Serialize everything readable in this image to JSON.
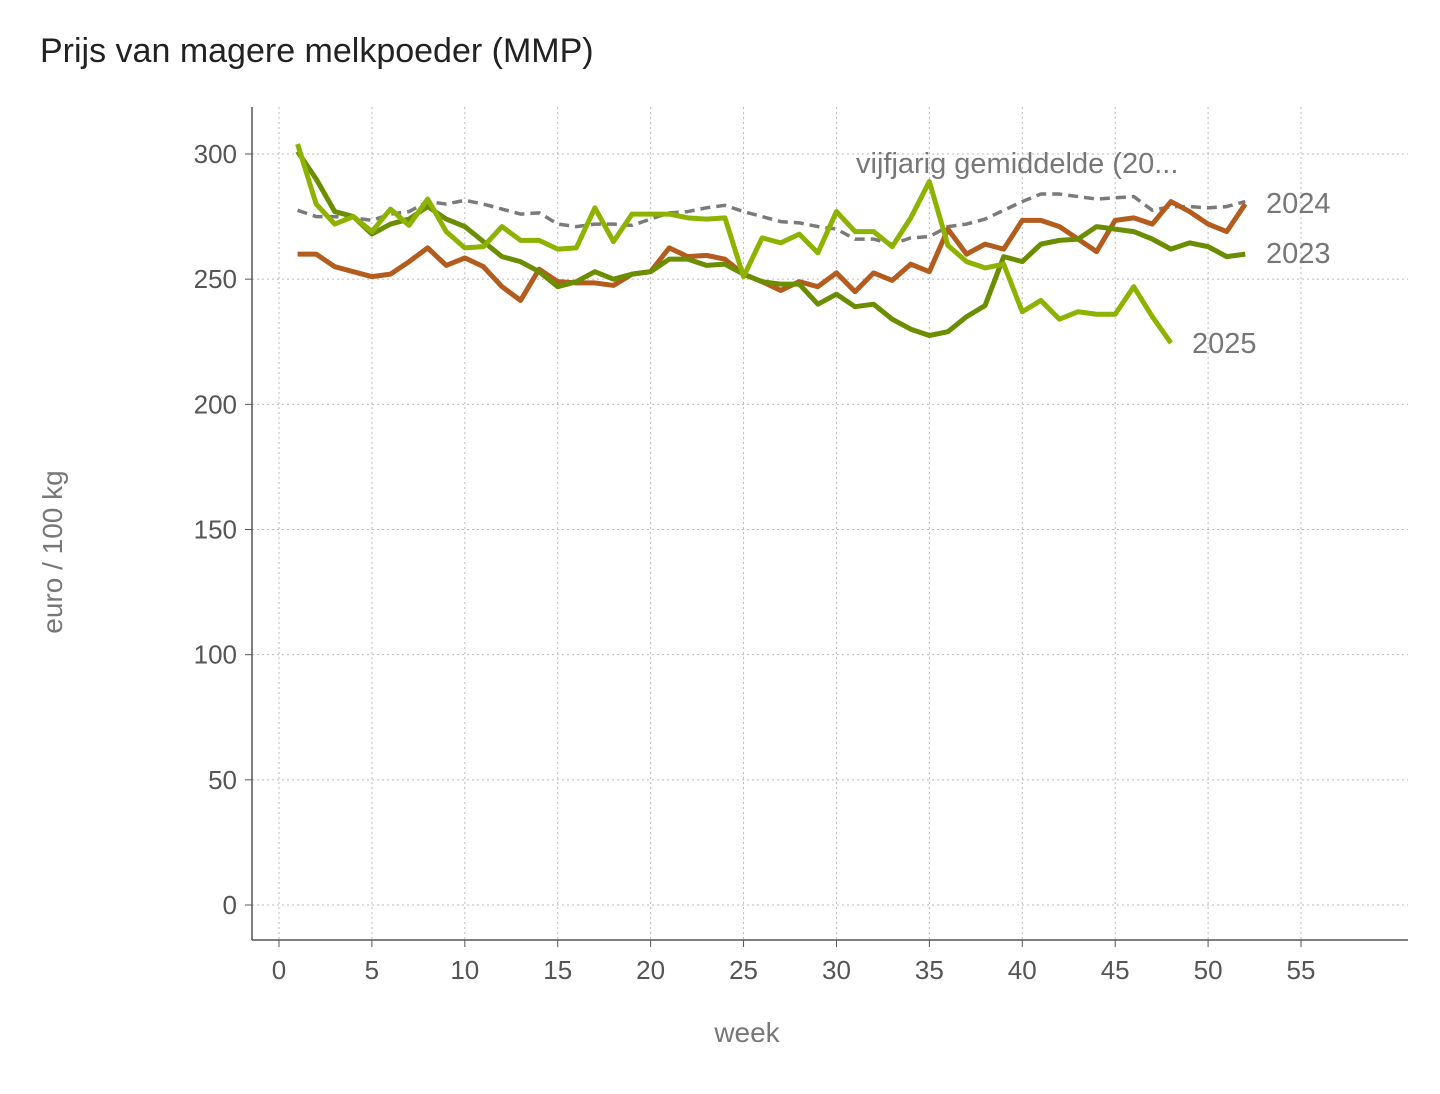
{
  "title": "Prijs van magere melkpoeder (MMP)",
  "chart_data": {
    "type": "line",
    "title": "Prijs van magere melkpoeder (MMP)",
    "xlabel": "week",
    "ylabel": "euro / 100 kg",
    "xlim": [
      -1.5,
      60.5
    ],
    "ylim": [
      -13,
      319
    ],
    "xticks": [
      0,
      5,
      10,
      15,
      20,
      25,
      30,
      35,
      40,
      45,
      50,
      55
    ],
    "yticks": [
      0,
      50,
      100,
      150,
      200,
      250,
      300
    ],
    "grid": true,
    "legend": "direct labels at line ends",
    "series": [
      {
        "name": "vijfjarig gemiddelde (20...",
        "color": "#7a7a7a",
        "dash": true,
        "values": [
          277.5,
          275,
          275,
          274.5,
          273.5,
          276,
          277,
          281,
          280,
          281.5,
          280,
          278,
          276,
          276.5,
          272,
          271,
          272,
          272,
          271.5,
          274,
          276.5,
          277,
          278.5,
          279.5,
          277,
          275,
          273,
          272.5,
          271,
          270,
          266,
          266,
          264,
          266.5,
          267,
          271,
          272,
          274,
          277.5,
          281,
          284,
          284,
          283,
          282,
          282.5,
          283,
          277.5,
          279,
          279,
          278.5,
          279,
          281
        ]
      },
      {
        "name": "2024",
        "color": "#b35c1e",
        "values": [
          260,
          260,
          255,
          253,
          251,
          252,
          257,
          262.5,
          255.5,
          258.5,
          255,
          247,
          241.5,
          254,
          249,
          248.5,
          248.5,
          247.5,
          252,
          253,
          262.5,
          259,
          259.5,
          258,
          252,
          249,
          245.5,
          249,
          247,
          252.5,
          245,
          252.5,
          249.5,
          256,
          253,
          270,
          260,
          264,
          262,
          273.5,
          273.5,
          271,
          266,
          261,
          273.5,
          274.5,
          272,
          281,
          277,
          272,
          269,
          280
        ]
      },
      {
        "name": "2023",
        "color": "#6b8e00",
        "values": [
          301,
          290,
          277,
          275,
          268,
          272,
          274,
          279,
          274,
          271,
          265,
          259,
          257,
          253,
          247,
          249,
          253,
          250,
          252,
          253,
          258,
          258,
          255.5,
          256,
          252,
          249,
          248,
          248,
          240,
          244,
          239,
          240,
          234,
          230,
          227.5,
          229,
          235,
          239.5,
          259,
          257,
          264,
          265.5,
          266,
          271,
          270,
          269,
          266,
          262,
          264.5,
          263,
          259,
          260
        ]
      },
      {
        "name": "2025",
        "color": "#8db300",
        "values": [
          304,
          280,
          272,
          275,
          269,
          278,
          271.5,
          282,
          269,
          262.5,
          263,
          271,
          265.5,
          265.5,
          262,
          262.5,
          278.5,
          265,
          276,
          276,
          276,
          274.5,
          274,
          274.5,
          251,
          266.5,
          264.5,
          268,
          260.5,
          277,
          269,
          269,
          263,
          274.5,
          289,
          263.5,
          257,
          254.5,
          256,
          237,
          241.5,
          234,
          237,
          236,
          236,
          247,
          235,
          224.5
        ]
      }
    ]
  }
}
